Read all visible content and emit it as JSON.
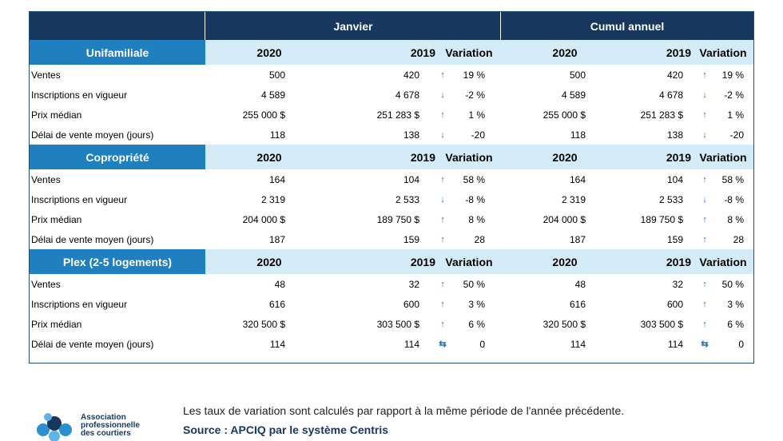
{
  "header": {
    "janvier": "Janvier",
    "cumul": "Cumul annuel"
  },
  "columns": {
    "y2020": "2020",
    "y2019": "2019",
    "variation": "Variation"
  },
  "sections": [
    {
      "title": "Unifamiliale",
      "rows": [
        {
          "label": "Ventes",
          "j2020": "500",
          "j2019": "420",
          "jdir": "up",
          "jvar": "19 %",
          "c2020": "500",
          "c2019": "420",
          "cdir": "up",
          "cvar": "19 %"
        },
        {
          "label": "Inscriptions en vigueur",
          "j2020": "4 589",
          "j2019": "4 678",
          "jdir": "down",
          "jvar": "-2 %",
          "c2020": "4 589",
          "c2019": "4 678",
          "cdir": "down",
          "cvar": "-2 %"
        },
        {
          "label": "Prix médian",
          "j2020": "255 000 $",
          "j2019": "251 283 $",
          "jdir": "up",
          "jvar": "1 %",
          "c2020": "255 000 $",
          "c2019": "251 283 $",
          "cdir": "up",
          "cvar": "1 %"
        },
        {
          "label": "Délai de vente moyen (jours)",
          "j2020": "118",
          "j2019": "138",
          "jdir": "down",
          "jvar": "-20",
          "c2020": "118",
          "c2019": "138",
          "cdir": "down",
          "cvar": "-20"
        }
      ]
    },
    {
      "title": "Copropriété",
      "rows": [
        {
          "label": "Ventes",
          "j2020": "164",
          "j2019": "104",
          "jdir": "up",
          "jvar": "58 %",
          "c2020": "164",
          "c2019": "104",
          "cdir": "up",
          "cvar": "58 %"
        },
        {
          "label": "Inscriptions en vigueur",
          "j2020": "2 319",
          "j2019": "2 533",
          "jdir": "down",
          "jvar": "-8 %",
          "c2020": "2 319",
          "c2019": "2 533",
          "cdir": "down",
          "cvar": "-8 %"
        },
        {
          "label": "Prix médian",
          "j2020": "204 000 $",
          "j2019": "189 750 $",
          "jdir": "up",
          "jvar": "8 %",
          "c2020": "204 000 $",
          "c2019": "189 750 $",
          "cdir": "up",
          "cvar": "8 %"
        },
        {
          "label": "Délai de vente moyen (jours)",
          "j2020": "187",
          "j2019": "159",
          "jdir": "up",
          "jvar": "28",
          "c2020": "187",
          "c2019": "159",
          "cdir": "up",
          "cvar": "28"
        }
      ]
    },
    {
      "title": "Plex (2-5 logements)",
      "rows": [
        {
          "label": "Ventes",
          "j2020": "48",
          "j2019": "32",
          "jdir": "up",
          "jvar": "50 %",
          "c2020": "48",
          "c2019": "32",
          "cdir": "up",
          "cvar": "50 %"
        },
        {
          "label": "Inscriptions en vigueur",
          "j2020": "616",
          "j2019": "600",
          "jdir": "up",
          "jvar": "3 %",
          "c2020": "616",
          "c2019": "600",
          "cdir": "up",
          "cvar": "3 %"
        },
        {
          "label": "Prix médian",
          "j2020": "320 500 $",
          "j2019": "303 500 $",
          "jdir": "up",
          "jvar": "6 %",
          "c2020": "320 500 $",
          "c2019": "303 500 $",
          "cdir": "up",
          "cvar": "6 %"
        },
        {
          "label": "Délai de vente moyen (jours)",
          "j2020": "114",
          "j2019": "114",
          "jdir": "same",
          "jvar": "0",
          "c2020": "114",
          "c2019": "114",
          "cdir": "same",
          "cvar": "0"
        }
      ]
    }
  ],
  "footer": {
    "note": "Les taux de variation sont calculés par rapport à la même période de l'année précédente.",
    "source": "Source : APCIQ par le système Centris"
  },
  "logo": {
    "line1": "Association",
    "line2": "professionnelle",
    "line3": "des courtiers"
  },
  "colors": {
    "header": "#17375e",
    "section": "#1f7fbf",
    "subheader": "#d4ecf8",
    "arrow": "#1f70b8"
  }
}
